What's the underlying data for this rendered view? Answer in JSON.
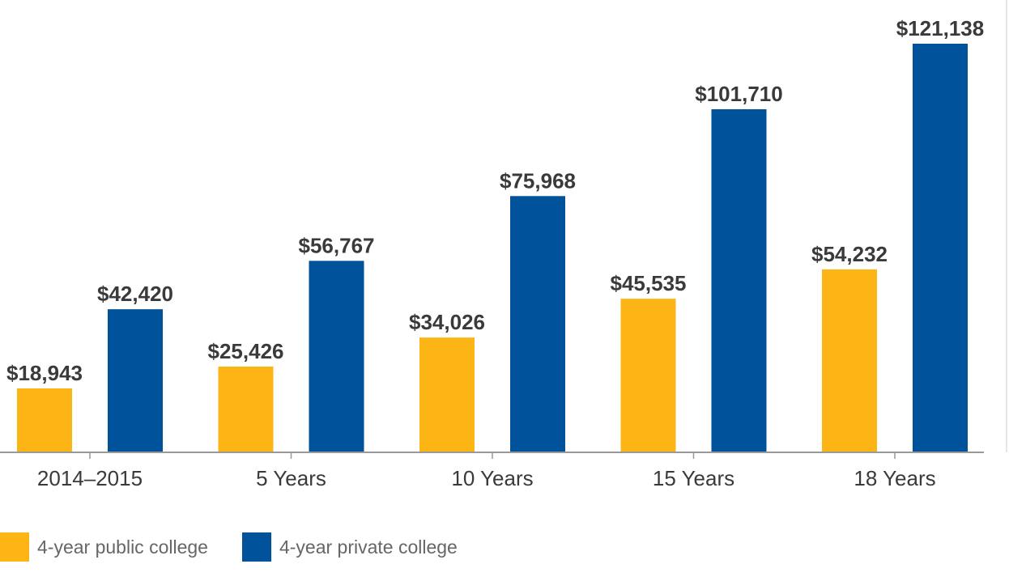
{
  "chart_data": {
    "type": "bar",
    "title": "",
    "xlabel": "",
    "ylabel": "",
    "categories": [
      "2014–2015",
      "5 Years",
      "10 Years",
      "15 Years",
      "18 Years"
    ],
    "series": [
      {
        "name": "4-year public college",
        "color": "#FDB515",
        "values": [
          18943,
          25426,
          34026,
          45535,
          54232
        ],
        "labels": [
          "$18,943",
          "$25,426",
          "$34,026",
          "$45,535",
          "$54,232"
        ]
      },
      {
        "name": "4-year private college",
        "color": "#00539B",
        "values": [
          42420,
          56767,
          75968,
          101710,
          121138
        ],
        "labels": [
          "$42,420",
          "$56,767",
          "$75,968",
          "$101,710",
          "$121,138"
        ]
      }
    ],
    "ylim": [
      0,
      121138
    ],
    "grid": false,
    "legend_position": "bottom-left"
  }
}
